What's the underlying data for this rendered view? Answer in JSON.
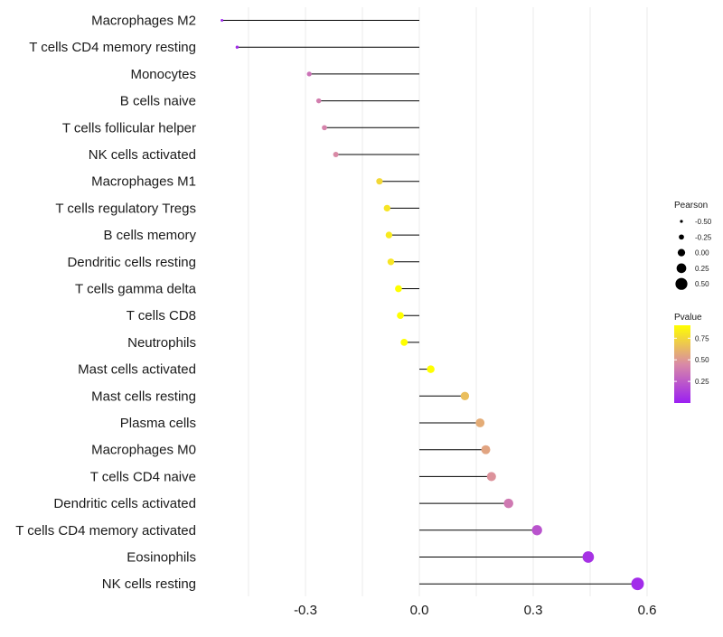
{
  "chart_data": {
    "type": "lollipop",
    "title": "",
    "xlabel": "",
    "ylabel": "",
    "xlim": [
      -0.6,
      0.62
    ],
    "x_ticks": [
      -0.3,
      0.0,
      0.3,
      0.6
    ],
    "x_tick_labels": [
      "-0.3",
      "0.0",
      "0.3",
      "0.6"
    ],
    "grid": true,
    "categories": [
      "Macrophages M2",
      "T cells CD4 memory resting",
      "Monocytes",
      "B cells naive",
      "T cells follicular helper",
      "NK cells activated",
      "Macrophages M1",
      "T cells regulatory  Tregs ",
      "B cells memory",
      "Dendritic cells resting",
      "T cells gamma delta",
      "T cells CD8",
      "Neutrophils",
      "Mast cells activated",
      "Mast cells resting",
      "Plasma cells",
      "Macrophages M0",
      "T cells CD4 naive",
      "Dendritic cells activated",
      "T cells CD4 memory activated",
      "Eosinophils",
      "NK cells resting"
    ],
    "pearson": [
      -0.52,
      -0.48,
      -0.29,
      -0.265,
      -0.25,
      -0.22,
      -0.105,
      -0.085,
      -0.08,
      -0.075,
      -0.055,
      -0.05,
      -0.04,
      0.03,
      0.12,
      0.16,
      0.175,
      0.19,
      0.235,
      0.31,
      0.445,
      0.575
    ],
    "pvalue": [
      0.02,
      0.05,
      0.35,
      0.4,
      0.42,
      0.45,
      0.75,
      0.8,
      0.82,
      0.8,
      0.9,
      0.9,
      0.95,
      0.97,
      0.65,
      0.58,
      0.55,
      0.48,
      0.38,
      0.22,
      0.08,
      0.05
    ],
    "legend": {
      "size_title": "Pearson",
      "size_values": [
        -0.5,
        -0.25,
        0.0,
        0.25,
        0.5
      ],
      "size_labels": [
        "-0.50",
        "-0.25",
        "0.00",
        "0.25",
        "0.50"
      ],
      "color_title": "Pvalue",
      "color_ticks": [
        0.25,
        0.5,
        0.75
      ],
      "color_tick_labels": [
        "0.25",
        "0.50",
        "0.75"
      ],
      "color_range": [
        0.0,
        0.9
      ],
      "placement": "right"
    },
    "colors": {
      "low": "#9b1ff2",
      "mid": "#d98aa6",
      "high": "#ffff00"
    }
  }
}
